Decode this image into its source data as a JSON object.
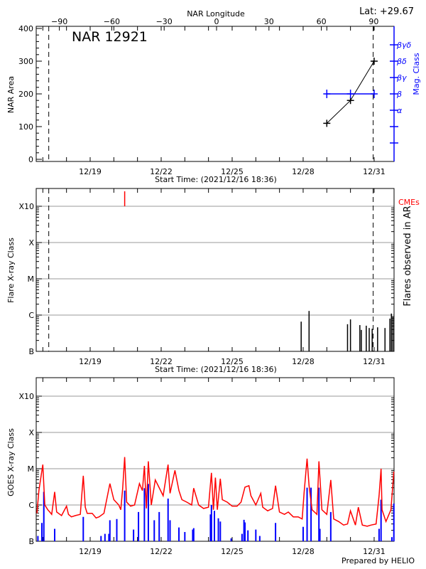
{
  "title": "NAR 12921",
  "latitude_label": "Lat: +29.67",
  "footer": "Prepared by HELIO",
  "colors": {
    "goes_long": "#ff0000",
    "goes_short": "#0000ff",
    "mag_class": "#0000ff",
    "cme": "#ff0000",
    "grid": "#999999"
  },
  "chart_data": [
    {
      "type": "line",
      "panel": "NAR area and magnetic class",
      "ylabel": "NAR Area",
      "ylabel_right": "Mag. Class",
      "xlabel": "Start Time: (2021/12/16 18:36)",
      "xlabel_top": "NAR Longitude",
      "ylim": [
        0,
        400
      ],
      "yticks": [
        "0",
        "100",
        "200",
        "300",
        "400"
      ],
      "xticks": [
        "12/19",
        "12/22",
        "12/25",
        "12/28",
        "12/31"
      ],
      "xticks_top": [
        "-90",
        "-60",
        "-30",
        "0",
        "30",
        "60",
        "90"
      ],
      "mag_class_ticks": [
        "",
        "",
        "α",
        "β",
        "βγ",
        "βδ",
        "βγδ"
      ],
      "dashed_lines": [
        "12/17 06:00",
        "12/30 23:00"
      ],
      "points": [
        {
          "time": "12/29 00:00",
          "area": 110,
          "mag_class": "β"
        },
        {
          "time": "12/30 00:00",
          "area": 180,
          "mag_class": "β"
        },
        {
          "time": "12/31 00:00",
          "area": 300,
          "mag_class": "β"
        }
      ]
    },
    {
      "type": "bar",
      "panel": "Flares observed in AR",
      "ylabel": "Flare X-ray Class",
      "ylabel_right": "Flares observed in AR",
      "xlabel": "Start Time: (2021/12/16 18:36)",
      "yticks": [
        "B",
        "C",
        "M",
        "X",
        "X10"
      ],
      "xticks": [
        "12/19",
        "12/22",
        "12/25",
        "12/28",
        "12/31"
      ],
      "cme_label": "CMEs",
      "cmes": [
        "12/20 11:00"
      ],
      "dashed_lines": [
        "12/17 06:00",
        "12/30 23:00"
      ],
      "flares": [
        {
          "time": "12/27 22:00",
          "class": "B6.6"
        },
        {
          "time": "12/28 06:00",
          "class": "C1.3"
        },
        {
          "time": "12/29 21:00",
          "class": "B5.6"
        },
        {
          "time": "12/30 00:00",
          "class": "B7.6"
        },
        {
          "time": "12/30 09:30",
          "class": "B5.3"
        },
        {
          "time": "12/30 11:00",
          "class": "B3.9"
        },
        {
          "time": "12/30 16:00",
          "class": "B5.1"
        },
        {
          "time": "12/30 19:00",
          "class": "B4.4"
        },
        {
          "time": "12/30 22:00",
          "class": "B4.2"
        },
        {
          "time": "12/31 03:30",
          "class": "B4.6"
        },
        {
          "time": "12/31 11:00",
          "class": "B4.4"
        },
        {
          "time": "12/31 16:00",
          "class": "B8.0"
        },
        {
          "time": "12/31 17:30",
          "class": "C1.1"
        },
        {
          "time": "12/31 19:00",
          "class": "B9.1"
        }
      ]
    },
    {
      "type": "line",
      "panel": "GOES X-ray flux",
      "ylabel": "GOES X-ray Class",
      "yticks": [
        "B",
        "C",
        "M",
        "X",
        "X10"
      ],
      "xticks": [
        "12/19",
        "12/22",
        "12/25",
        "12/28",
        "12/31"
      ],
      "yscale": "log",
      "grid": true,
      "series": [
        {
          "color": "#ff0000",
          "style": "line",
          "points": [
            [
              "12/16 18:00",
              5.9e-07
            ],
            [
              "12/16 20:00",
              2.5e-06
            ],
            [
              "12/17 00:00",
              1.3e-05
            ],
            [
              "12/17 02:00",
              1e-06
            ],
            [
              "12/17 05:00",
              7.4e-07
            ],
            [
              "12/17 07:00",
              6.4e-07
            ],
            [
              "12/17 09:00",
              5.5e-07
            ],
            [
              "12/17 12:00",
              2.3e-06
            ],
            [
              "12/17 14:00",
              6.4e-07
            ],
            [
              "12/17 19:00",
              5.1e-07
            ],
            [
              "12/18 00:00",
              9.3e-07
            ],
            [
              "12/18 02:00",
              5.5e-07
            ],
            [
              "12/18 05:00",
              4.7e-07
            ],
            [
              "12/18 09:00",
              5.1e-07
            ],
            [
              "12/18 14:00",
              5.5e-07
            ],
            [
              "12/18 17:00",
              6.4e-06
            ],
            [
              "12/18 19:00",
              8.7e-07
            ],
            [
              "12/18 21:00",
              5.9e-07
            ],
            [
              "12/19 02:00",
              5.9e-07
            ],
            [
              "12/19 06:00",
              4.4e-07
            ],
            [
              "12/19 09:00",
              4.7e-07
            ],
            [
              "12/19 14:00",
              5.9e-07
            ],
            [
              "12/19 20:00",
              3.9e-06
            ],
            [
              "12/20 00:00",
              1.4e-06
            ],
            [
              "12/20 05:00",
              1e-06
            ],
            [
              "12/20 07:00",
              7.4e-07
            ],
            [
              "12/20 09:00",
              2.9e-06
            ],
            [
              "12/20 11:00",
              2.1e-05
            ],
            [
              "12/20 13:00",
              1.2e-06
            ],
            [
              "12/20 17:00",
              9.3e-07
            ],
            [
              "12/20 21:00",
              1e-06
            ],
            [
              "12/21 02:00",
              3.9e-06
            ],
            [
              "12/21 05:00",
              2.5e-06
            ],
            [
              "12/21 07:00",
              1.2e-05
            ],
            [
              "12/21 09:00",
              8e-07
            ],
            [
              "12/21 11:00",
              1.6e-05
            ],
            [
              "12/21 14:00",
              1e-06
            ],
            [
              "12/21 18:00",
              4.9e-06
            ],
            [
              "12/21 21:00",
              3.4e-06
            ],
            [
              "12/22 02:00",
              1.8e-06
            ],
            [
              "12/22 07:00",
              1.3e-05
            ],
            [
              "12/22 09:00",
              2.1e-06
            ],
            [
              "12/22 14:00",
              9e-06
            ],
            [
              "12/22 18:00",
              2.5e-06
            ],
            [
              "12/22 21:00",
              1.4e-06
            ],
            [
              "12/23 02:00",
              1.2e-06
            ],
            [
              "12/23 07:00",
              1e-06
            ],
            [
              "12/23 09:00",
              2.9e-06
            ],
            [
              "12/23 14:00",
              1e-06
            ],
            [
              "12/23 19:00",
              8e-07
            ],
            [
              "12/24 00:00",
              8.7e-07
            ],
            [
              "12/24 03:00",
              7.7e-06
            ],
            [
              "12/24 05:00",
              7.4e-07
            ],
            [
              "12/24 07:00",
              5.7e-06
            ],
            [
              "12/24 09:00",
              7.4e-07
            ],
            [
              "12/24 12:00",
              5.3e-06
            ],
            [
              "12/24 14:00",
              1.4e-06
            ],
            [
              "12/24 19:00",
              1.2e-06
            ],
            [
              "12/25 00:00",
              9.3e-07
            ],
            [
              "12/25 05:00",
              9.3e-07
            ],
            [
              "12/25 09:00",
              1.2e-06
            ],
            [
              "12/25 13:00",
              3.1e-06
            ],
            [
              "12/25 17:00",
              3.4e-06
            ],
            [
              "12/25 19:00",
              1.8e-06
            ],
            [
              "12/26 00:00",
              1e-06
            ],
            [
              "12/26 05:00",
              2.1e-06
            ],
            [
              "12/26 07:00",
              8.7e-07
            ],
            [
              "12/26 12:00",
              6.9e-07
            ],
            [
              "12/26 17:00",
              8e-07
            ],
            [
              "12/26 20:00",
              3.4e-06
            ],
            [
              "12/27 00:00",
              6.4e-07
            ],
            [
              "12/27 05:00",
              5.5e-07
            ],
            [
              "12/27 09:00",
              6.4e-07
            ],
            [
              "12/27 14:00",
              4.7e-07
            ],
            [
              "12/27 19:00",
              4.7e-07
            ],
            [
              "12/27 23:00",
              4.1e-07
            ],
            [
              "12/28 01:00",
              2.3e-06
            ],
            [
              "12/28 04:00",
              1.9e-05
            ],
            [
              "12/28 06:00",
              3.4e-06
            ],
            [
              "12/28 09:00",
              7.4e-07
            ],
            [
              "12/28 14:00",
              5.5e-07
            ],
            [
              "12/28 16:00",
              1.6e-05
            ],
            [
              "12/28 19:00",
              7.4e-07
            ],
            [
              "12/29 00:00",
              5.5e-07
            ],
            [
              "12/29 04:00",
              4.9e-06
            ],
            [
              "12/29 07:00",
              4.1e-07
            ],
            [
              "12/29 12:00",
              3.5e-07
            ],
            [
              "12/29 17:00",
              2.8e-07
            ],
            [
              "12/29 21:00",
              3e-07
            ],
            [
              "12/30 00:00",
              6.9e-07
            ],
            [
              "12/30 05:00",
              2.8e-07
            ],
            [
              "12/30 08:00",
              8.7e-07
            ],
            [
              "12/30 12:00",
              2.8e-07
            ],
            [
              "12/30 17:00",
              2.6e-07
            ],
            [
              "12/30 21:00",
              2.8e-07
            ],
            [
              "12/31 02:00",
              3e-07
            ],
            [
              "12/31 05:00",
              1.8e-06
            ],
            [
              "12/31 07:00",
              1e-05
            ],
            [
              "12/31 08:00",
              7.4e-07
            ],
            [
              "12/31 12:00",
              3.5e-07
            ],
            [
              "12/31 17:00",
              7.4e-07
            ],
            [
              "12/31 20:00",
              8.3e-06
            ]
          ]
        },
        {
          "color": "#0000ff",
          "style": "bars",
          "points": [
            [
              "12/16 19:00",
              1.4e-07
            ],
            [
              "12/16 23:00",
              3.2e-07
            ],
            [
              "12/17 01:00",
              2.3e-06
            ],
            [
              "12/17 12:00",
              2.2e-07
            ],
            [
              "12/18 17:00",
              4.7e-07
            ],
            [
              "12/19 11:00",
              1.4e-07
            ],
            [
              "12/19 15:00",
              1.6e-07
            ],
            [
              "12/19 19:00",
              1.6e-07
            ],
            [
              "12/19 20:00",
              3.8e-07
            ],
            [
              "12/20 03:00",
              4.1e-07
            ],
            [
              "12/20 11:00",
              2.5e-06
            ],
            [
              "12/20 20:00",
              2.1e-07
            ],
            [
              "12/21 01:00",
              6.4e-07
            ],
            [
              "12/21 07:00",
              2.9e-06
            ],
            [
              "12/21 11:00",
              3.8e-06
            ],
            [
              "12/21 17:00",
              3.8e-07
            ],
            [
              "12/21 22:00",
              6.4e-07
            ],
            [
              "12/22 07:00",
              1.5e-06
            ],
            [
              "12/22 09:00",
              3.8e-07
            ],
            [
              "12/22 18:00",
              2.4e-07
            ],
            [
              "12/23 00:00",
              1.8e-07
            ],
            [
              "12/23 08:00",
              2.1e-07
            ],
            [
              "12/23 09:00",
              2.3e-07
            ],
            [
              "12/24 02:00",
              5.5e-07
            ],
            [
              "12/24 03:00",
              1e-06
            ],
            [
              "12/24 06:00",
              6.9e-07
            ],
            [
              "12/24 10:00",
              4.3e-07
            ],
            [
              "12/24 12:00",
              3.5e-07
            ],
            [
              "12/24 23:00",
              1.2e-07
            ],
            [
              "12/25 10:00",
              1.6e-07
            ],
            [
              "12/25 12:00",
              3.9e-07
            ],
            [
              "12/25 13:00",
              3.3e-07
            ],
            [
              "12/25 16:00",
              2e-07
            ],
            [
              "12/26 00:00",
              2.1e-07
            ],
            [
              "12/26 04:00",
              1.4e-07
            ],
            [
              "12/26 20:00",
              3.2e-07
            ],
            [
              "12/28 00:00",
              2.5e-07
            ],
            [
              "12/28 04:00",
              3e-06
            ],
            [
              "12/28 08:00",
              3e-06
            ],
            [
              "12/28 16:00",
              3e-06
            ],
            [
              "12/28 17:00",
              2.2e-07
            ],
            [
              "12/29 04:00",
              6.4e-07
            ],
            [
              "12/31 05:00",
              2.2e-07
            ],
            [
              "12/31 07:00",
              1.4e-06
            ],
            [
              "12/31 18:00",
              1.3e-07
            ],
            [
              "12/31 20:00",
              1.1e-06
            ]
          ]
        }
      ]
    }
  ]
}
